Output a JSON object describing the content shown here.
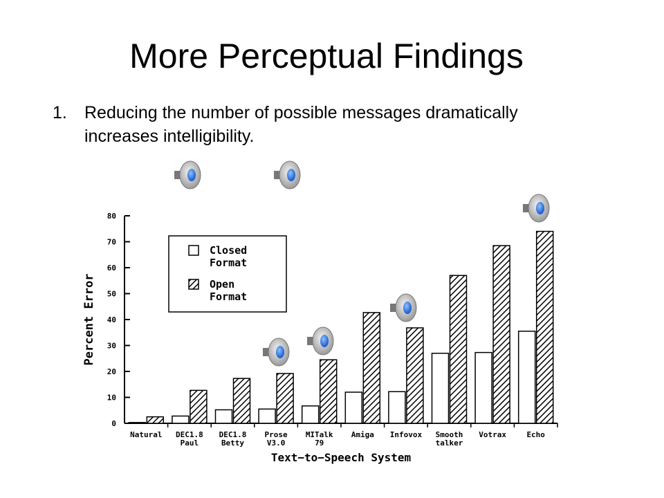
{
  "slide": {
    "title": "More Perceptual Findings",
    "bullet_number": "1.",
    "bullet_text": "Reducing the number of possible messages dramatically increases intelligibility."
  },
  "speakers": [
    {
      "name": "sound-icon"
    },
    {
      "name": "sound-icon"
    },
    {
      "name": "sound-icon"
    },
    {
      "name": "sound-icon"
    },
    {
      "name": "sound-icon"
    },
    {
      "name": "sound-icon"
    }
  ],
  "chart_data": {
    "type": "bar",
    "xlabel": "Text−to−Speech System",
    "ylabel": "Percent Error",
    "ylim": [
      0,
      80
    ],
    "yticks": [
      "0",
      "10",
      "20",
      "30",
      "40",
      "50",
      "60",
      "70",
      "80"
    ],
    "categories": [
      [
        "Natural"
      ],
      [
        "DEC1.8",
        "Paul"
      ],
      [
        "DEC1.8",
        "Betty"
      ],
      [
        "Prose",
        "V3.0"
      ],
      [
        "MITalk",
        "79"
      ],
      [
        "Amiga"
      ],
      [
        "Infovox"
      ],
      [
        "Smooth",
        "talker"
      ],
      [
        "Votrax"
      ],
      [
        "Echo"
      ]
    ],
    "series": [
      {
        "name": "Closed Format",
        "legend": [
          "Closed",
          "Format"
        ],
        "fill": "white",
        "values": [
          0.3,
          2.8,
          5.2,
          5.5,
          6.7,
          12.0,
          12.2,
          27.0,
          27.3,
          35.5
        ]
      },
      {
        "name": "Open Format",
        "legend": [
          "Open",
          "Format"
        ],
        "fill": "hatched",
        "values": [
          2.5,
          12.7,
          17.3,
          19.2,
          24.5,
          42.7,
          36.8,
          57.0,
          68.5,
          74.0
        ]
      }
    ],
    "legend_position": "top-left",
    "grid": false
  }
}
